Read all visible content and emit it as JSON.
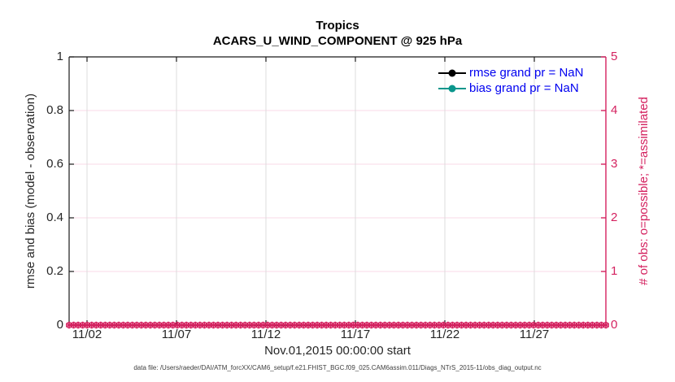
{
  "title": {
    "line1": "Tropics",
    "line2": "ACARS_U_WIND_COMPONENT @ 925 hPa"
  },
  "axes": {
    "left": {
      "label": "rmse and bias (model - observation)",
      "tick_labels": [
        "0",
        "0.2",
        "0.4",
        "0.6",
        "0.8",
        "1"
      ],
      "tick_values": [
        0,
        0.2,
        0.4,
        0.6,
        0.8,
        1
      ],
      "range": [
        0,
        1
      ],
      "color": "#262626"
    },
    "right": {
      "label": "# of obs: o=possible; *=assimilated",
      "tick_labels": [
        "0",
        "1",
        "2",
        "3",
        "4",
        "5"
      ],
      "tick_values": [
        0,
        1,
        2,
        3,
        4,
        5
      ],
      "range": [
        0,
        5
      ],
      "color": "#d4215f"
    },
    "bottom": {
      "label": "Nov.01,2015 00:00:00 start",
      "tick_labels": [
        "11/02",
        "11/07",
        "11/12",
        "11/17",
        "11/22",
        "11/27"
      ],
      "tick_day_offsets": [
        1,
        6,
        11,
        16,
        21,
        26
      ],
      "range_days": [
        0,
        30
      ]
    }
  },
  "legend": {
    "text_color": "#0000f0",
    "entries": [
      {
        "label": "rmse grand pr = NaN",
        "color": "#000000"
      },
      {
        "label": "bias grand pr = NaN",
        "color": "#0a968c"
      }
    ]
  },
  "footer": {
    "data_file": "data file: /Users/raeder/DAI/ATM_forcXX/CAM6_setup/f.e21.FHIST_BGC.f09_025.CAM6assim.011/Diags_NTrS_2015-11/obs_diag_output.nc"
  },
  "colors": {
    "axis_dark": "#1a1a1a",
    "pink": "#d4215f",
    "grid_pink": "#f8dae7",
    "grid_gray": "#dcdcdc",
    "teal": "#0a968c",
    "legend_blue": "#0000f0"
  },
  "chart_data": {
    "type": "line",
    "title": "Tropics — ACARS_U_WIND_COMPONENT @ 925 hPa",
    "x": "time, Nov 01 2015 00:00 to Dec 01 2015, 6-hour bins",
    "n_bins": 120,
    "xlabel": "Nov.01,2015 00:00:00 start",
    "ylabel_left": "rmse and bias (model - observation)",
    "ylabel_right": "# of obs: o=possible; *=assimilated",
    "ylim_left": [
      0,
      1
    ],
    "ylim_right": [
      0,
      5
    ],
    "grid": true,
    "legend_position": "top-right, no box",
    "series": [
      {
        "name": "rmse grand pr",
        "axis": "left",
        "color": "#000000",
        "marker": "filled-circle",
        "values": "NaN (no curve plotted)"
      },
      {
        "name": "bias grand pr",
        "axis": "left",
        "color": "#0a968c",
        "marker": "filled-circle",
        "values": "NaN (no curve plotted)"
      },
      {
        "name": "# obs possible (o)",
        "axis": "right",
        "color": "#d4215f",
        "marker": "circle",
        "constant_value": 0
      },
      {
        "name": "# obs assimilated (*)",
        "axis": "right",
        "color": "#d4215f",
        "marker": "asterisk",
        "constant_value": 0
      }
    ]
  }
}
